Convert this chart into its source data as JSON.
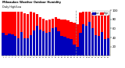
{
  "title": "Milwaukee Weather Outdoor Humidity",
  "subtitle": "Daily High/Low",
  "high_color": "#ff0000",
  "low_color": "#0000bb",
  "legend_high": "High",
  "legend_low": "Low",
  "background": "#ffffff",
  "highs": [
    97,
    96,
    97,
    97,
    96,
    96,
    97,
    94,
    92,
    96,
    95,
    92,
    85,
    82,
    78,
    80,
    82,
    85,
    82,
    80,
    80,
    78,
    75,
    72,
    70,
    95,
    97,
    97,
    97,
    94,
    96,
    90,
    92,
    96,
    90
  ],
  "lows": [
    50,
    46,
    48,
    47,
    44,
    38,
    52,
    38,
    38,
    45,
    55,
    65,
    58,
    54,
    50,
    52,
    60,
    62,
    54,
    44,
    42,
    38,
    36,
    24,
    20,
    50,
    70,
    65,
    75,
    60,
    46,
    44,
    52,
    36,
    38
  ],
  "vline_pos": 24,
  "ylim": [
    0,
    100
  ],
  "yticks": [
    20,
    40,
    60,
    80,
    100
  ],
  "bar_width": 0.85
}
